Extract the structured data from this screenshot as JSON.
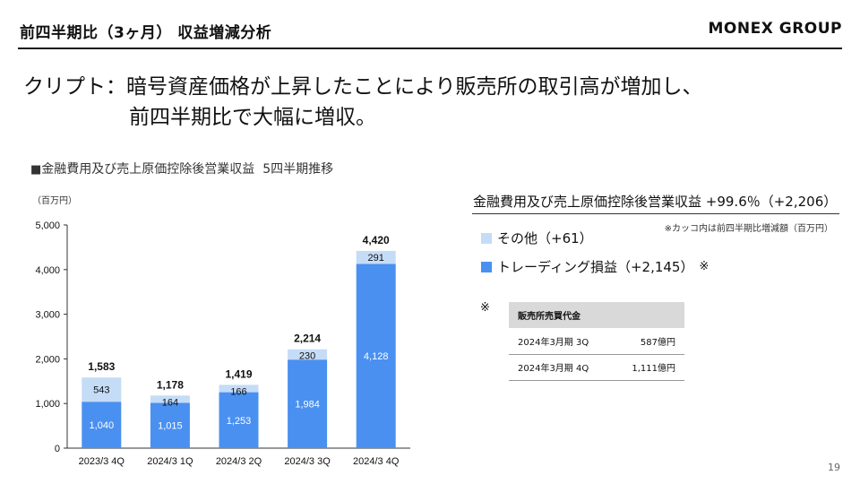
{
  "header": {
    "title": "前四半期比（3ヶ月） 収益増減分析",
    "brand": "MONEX GROUP"
  },
  "headline": {
    "line1": "クリプト：暗号資産価格が上昇したことにより販売所の取引高が増加し、",
    "line2": "前四半期比で大幅に増収。"
  },
  "chart_heading": {
    "marker": "■",
    "text": "金融費用及び売上原価控除後営業収益",
    "suffix": "5四半期推移"
  },
  "panel": {
    "title": "金融費用及び売上原価控除後営業収益 +99.6％（+2,206）",
    "note": "※カッコ内は前四半期比増減額（百万円）",
    "legend": [
      {
        "label": "その他（+61）",
        "color": "#c5dcf7"
      },
      {
        "label": "トレーディング損益（+2,145）",
        "color": "#4a90f0",
        "mark": "※"
      }
    ]
  },
  "note_mark": "※",
  "sales_table": {
    "header": "販売所売買代金",
    "rows": [
      {
        "period": "2024年3月期 3Q",
        "value": "587億円"
      },
      {
        "period": "2024年3月期 4Q",
        "value": "1,111億円"
      }
    ]
  },
  "page_number": "19",
  "chart_data": {
    "type": "bar",
    "stacked": true,
    "unit_label": "（百万円）",
    "categories": [
      "2023/3 4Q",
      "2024/3 1Q",
      "2024/3 2Q",
      "2024/3 3Q",
      "2024/3 4Q"
    ],
    "series": [
      {
        "name": "トレーディング損益",
        "values": [
          1040,
          1015,
          1253,
          1984,
          4128
        ],
        "labels": [
          "1,040",
          "1,015",
          "1,253",
          "1,984",
          "4,128"
        ],
        "color": "#4a90f0"
      },
      {
        "name": "その他",
        "values": [
          543,
          164,
          166,
          230,
          291
        ],
        "labels": [
          "543",
          "164",
          "166",
          "230",
          "291"
        ],
        "color": "#c5dcf7"
      }
    ],
    "totals": [
      "1,583",
      "1,178",
      "1,419",
      "2,214",
      "4,420"
    ],
    "ylim": [
      0,
      5000
    ],
    "yticks": [
      0,
      1000,
      2000,
      3000,
      4000,
      5000
    ],
    "ytick_labels": [
      "0",
      "1,000",
      "2,000",
      "3,000",
      "4,000",
      "5,000"
    ],
    "grid": false,
    "legend": "right"
  }
}
